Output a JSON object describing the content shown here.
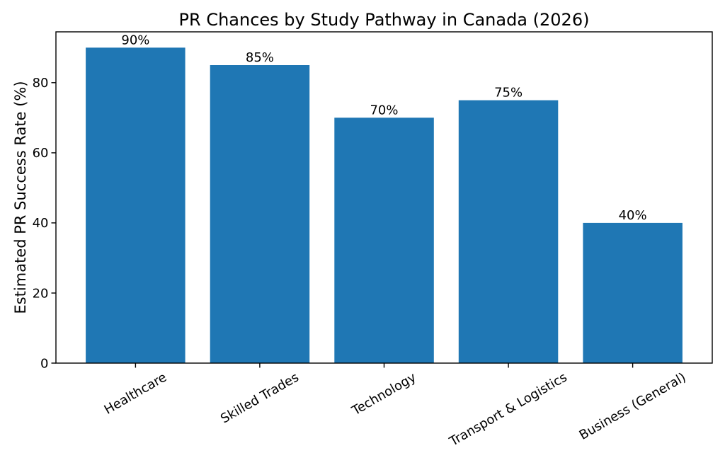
{
  "chart_data": {
    "type": "bar",
    "title": "PR Chances by Study Pathway in Canada (2026)",
    "ylabel": "Estimated PR Success Rate (%)",
    "xlabel": "",
    "categories": [
      "Healthcare",
      "Skilled Trades",
      "Technology",
      "Transport & Logistics",
      "Business (General)"
    ],
    "values": [
      90,
      85,
      70,
      75,
      40
    ],
    "bar_labels": [
      "90%",
      "85%",
      "70%",
      "75%",
      "40%"
    ],
    "yticks": [
      0,
      20,
      40,
      60,
      80
    ],
    "ylim": [
      0,
      94.5
    ],
    "xtick_rotation_degrees": 30,
    "grid": false,
    "legend": null,
    "bar_color": "#1f77b4",
    "text_color": "#000000",
    "axis_color": "#000000",
    "background_color": "#ffffff"
  }
}
